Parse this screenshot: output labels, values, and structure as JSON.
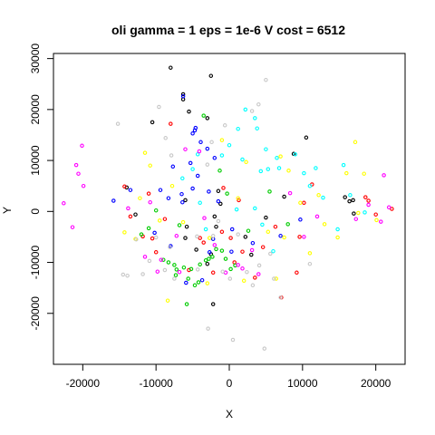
{
  "chart_data": {
    "type": "scatter",
    "title": "oli gamma = 1 eps = 1e-6 V cost = 6512",
    "xlabel": "X",
    "ylabel": "Y",
    "xlim": [
      -24000,
      24000
    ],
    "ylim": [
      -30000,
      31000
    ],
    "x_ticks": [
      -20000,
      -10000,
      0,
      10000,
      20000
    ],
    "y_ticks": [
      -20000,
      -10000,
      0,
      10000,
      20000,
      30000
    ],
    "x_tick_labels": [
      "-20000",
      "-10000",
      "0",
      "10000",
      "20000"
    ],
    "y_tick_labels": [
      "-20000",
      "-10000",
      "0",
      "10000",
      "20000",
      "30000"
    ],
    "grid": false,
    "legend": "none",
    "series": [
      {
        "color": "#000000",
        "points": [
          [
            -8000,
            28200
          ],
          [
            -6300,
            23000
          ],
          [
            -6300,
            22000
          ],
          [
            -2500,
            26600
          ],
          [
            -10500,
            17500
          ],
          [
            -5500,
            19600
          ],
          [
            -3000,
            18300
          ],
          [
            -12800,
            -600
          ],
          [
            -5800,
            -3000
          ],
          [
            -6000,
            2200
          ],
          [
            -6000,
            -5200
          ],
          [
            -1800,
            -3000
          ],
          [
            -1500,
            4000
          ],
          [
            -2500,
            -8400
          ],
          [
            -3000,
            -10300
          ],
          [
            2200,
            -5000
          ],
          [
            5000,
            -1200
          ],
          [
            7500,
            2900
          ],
          [
            8800,
            11300
          ],
          [
            10500,
            14500
          ],
          [
            15800,
            2800
          ],
          [
            16400,
            2000
          ],
          [
            16900,
            2200
          ],
          [
            17000,
            -400
          ],
          [
            -4500,
            -7500
          ],
          [
            -2000,
            -1000
          ],
          [
            -1200,
            1500
          ],
          [
            3000,
            -8500
          ],
          [
            -2200,
            -18200
          ],
          [
            -14000,
            4700
          ]
        ]
      },
      {
        "color": "#ff0000",
        "points": [
          [
            -8000,
            17200
          ],
          [
            -14300,
            4900
          ],
          [
            -13500,
            -1000
          ],
          [
            -11800,
            -4900
          ],
          [
            -11000,
            3500
          ],
          [
            -10500,
            -5300
          ],
          [
            -8800,
            -1500
          ],
          [
            -4000,
            -5200
          ],
          [
            -3500,
            -6100
          ],
          [
            -2200,
            -12000
          ],
          [
            -1000,
            -4000
          ],
          [
            -800,
            4600
          ],
          [
            200,
            -5200
          ],
          [
            700,
            -10000
          ],
          [
            1300,
            2200
          ],
          [
            1800,
            -7900
          ],
          [
            3500,
            -13000
          ],
          [
            4600,
            -7000
          ],
          [
            6300,
            -3000
          ],
          [
            7100,
            -16900
          ],
          [
            9200,
            -12000
          ],
          [
            9600,
            -5000
          ],
          [
            10200,
            1700
          ],
          [
            11300,
            5300
          ],
          [
            18600,
            2800
          ],
          [
            19000,
            2100
          ],
          [
            20000,
            -600
          ],
          [
            22200,
            500
          ],
          [
            -10000,
            -8000
          ],
          [
            -5500,
            -11500
          ]
        ]
      },
      {
        "color": "#00cc00",
        "points": [
          [
            -9000,
            -9500
          ],
          [
            -8300,
            -10000
          ],
          [
            -7500,
            -10500
          ],
          [
            -7300,
            -12500
          ],
          [
            -7200,
            -11400
          ],
          [
            -6200,
            -11000
          ],
          [
            -5600,
            -13200
          ],
          [
            -5200,
            -11300
          ],
          [
            -4700,
            -14500
          ],
          [
            -4200,
            -13900
          ],
          [
            -3200,
            -9600
          ],
          [
            -2800,
            -9300
          ],
          [
            -2300,
            -8900
          ],
          [
            -1800,
            -7400
          ],
          [
            -1000,
            -7700
          ],
          [
            -500,
            -9300
          ],
          [
            200,
            -11300
          ],
          [
            800,
            -10600
          ],
          [
            -5800,
            -18200
          ],
          [
            -4000,
            -10400
          ],
          [
            -12000,
            -4500
          ],
          [
            -11000,
            -3300
          ],
          [
            -10000,
            200
          ],
          [
            -6800,
            -2700
          ],
          [
            -3500,
            18800
          ],
          [
            -1300,
            8000
          ],
          [
            -300,
            3500
          ],
          [
            2600,
            -3800
          ],
          [
            5500,
            3900
          ],
          [
            8000,
            -2500
          ]
        ]
      },
      {
        "color": "#0000ff",
        "points": [
          [
            -6300,
            22600
          ],
          [
            -5000,
            15300
          ],
          [
            -4600,
            16400
          ],
          [
            -4700,
            15900
          ],
          [
            -3900,
            13600
          ],
          [
            -3000,
            12300
          ],
          [
            -2000,
            10500
          ],
          [
            -5300,
            9500
          ],
          [
            -7700,
            8800
          ],
          [
            -4300,
            7000
          ],
          [
            -2800,
            3900
          ],
          [
            -5000,
            4500
          ],
          [
            -8300,
            2600
          ],
          [
            -13500,
            4200
          ],
          [
            -15800,
            2100
          ],
          [
            -2200,
            -5400
          ],
          [
            -8000,
            -6800
          ],
          [
            -2700,
            -8000
          ],
          [
            300,
            -7900
          ],
          [
            3200,
            -6200
          ],
          [
            9700,
            -1600
          ],
          [
            7000,
            -4800
          ],
          [
            -6400,
            1800
          ],
          [
            -5900,
            -14000
          ],
          [
            -3700,
            -13500
          ],
          [
            -9400,
            4200
          ],
          [
            -6500,
            3400
          ],
          [
            -10200,
            -4200
          ],
          [
            -1500,
            2000
          ],
          [
            400,
            -3500
          ]
        ]
      },
      {
        "color": "#00ffff",
        "points": [
          [
            -4300,
            11200
          ],
          [
            -5000,
            8300
          ],
          [
            -1000,
            11000
          ],
          [
            0,
            13000
          ],
          [
            1200,
            16200
          ],
          [
            2200,
            20000
          ],
          [
            3500,
            18300
          ],
          [
            3800,
            16300
          ],
          [
            5000,
            12200
          ],
          [
            5300,
            8300
          ],
          [
            6500,
            10500
          ],
          [
            6800,
            8500
          ],
          [
            9000,
            11200
          ],
          [
            10200,
            7500
          ],
          [
            11800,
            8500
          ],
          [
            12800,
            2700
          ],
          [
            14800,
            -3500
          ],
          [
            15600,
            9100
          ],
          [
            16500,
            3200
          ],
          [
            18500,
            -200
          ],
          [
            3500,
            600
          ],
          [
            4500,
            -2600
          ],
          [
            6000,
            -7800
          ],
          [
            -3200,
            -3500
          ],
          [
            -4000,
            1700
          ],
          [
            1000,
            400
          ],
          [
            1800,
            10200
          ],
          [
            -6400,
            6500
          ],
          [
            4300,
            7900
          ],
          [
            11000,
            5000
          ]
        ]
      },
      {
        "color": "#ff00ff",
        "points": [
          [
            -22600,
            1600
          ],
          [
            -21400,
            -3100
          ],
          [
            -20900,
            9100
          ],
          [
            -20600,
            7400
          ],
          [
            -20100,
            12900
          ],
          [
            -19900,
            5000
          ],
          [
            -13800,
            600
          ],
          [
            -11500,
            -8900
          ],
          [
            -10800,
            1800
          ],
          [
            -9800,
            -11800
          ],
          [
            -9300,
            -9500
          ],
          [
            -7200,
            -4800
          ],
          [
            -6800,
            -11900
          ],
          [
            -6000,
            12200
          ],
          [
            -4100,
            11800
          ],
          [
            -3400,
            -1300
          ],
          [
            -2000,
            -6600
          ],
          [
            -500,
            -12000
          ],
          [
            1200,
            -10500
          ],
          [
            1800,
            -11200
          ],
          [
            3100,
            -7600
          ],
          [
            4000,
            -12300
          ],
          [
            8300,
            3600
          ],
          [
            10200,
            -5000
          ],
          [
            17300,
            -1500
          ],
          [
            19000,
            1300
          ],
          [
            20700,
            -2000
          ],
          [
            21100,
            7100
          ],
          [
            21800,
            800
          ],
          [
            12000,
            -1000
          ]
        ]
      },
      {
        "color": "#ffff00",
        "points": [
          [
            -11500,
            11500
          ],
          [
            -10800,
            9000
          ],
          [
            -12200,
            2600
          ],
          [
            -12800,
            -5400
          ],
          [
            -14300,
            -4100
          ],
          [
            -7800,
            5000
          ],
          [
            -6300,
            -2100
          ],
          [
            -2700,
            -5200
          ],
          [
            1200,
            2600
          ],
          [
            2300,
            9700
          ],
          [
            5300,
            -4000
          ],
          [
            7000,
            10800
          ],
          [
            7500,
            -5100
          ],
          [
            8100,
            8000
          ],
          [
            11000,
            -8200
          ],
          [
            12200,
            3200
          ],
          [
            14800,
            -5100
          ],
          [
            17200,
            13600
          ],
          [
            17600,
            -300
          ],
          [
            18400,
            7400
          ],
          [
            20100,
            -1700
          ],
          [
            2000,
            -13600
          ],
          [
            -3000,
            -14100
          ],
          [
            -8400,
            -17500
          ],
          [
            -1000,
            14000
          ],
          [
            13000,
            -2500
          ],
          [
            6400,
            -13200
          ],
          [
            -9500,
            -1800
          ],
          [
            16000,
            7500
          ],
          [
            9700,
            1700
          ]
        ]
      },
      {
        "color": "#c8c8c8",
        "points": [
          [
            -15200,
            17200
          ],
          [
            -14500,
            -12400
          ],
          [
            -13900,
            -12600
          ],
          [
            -12700,
            -5500
          ],
          [
            -11800,
            -12300
          ],
          [
            -10900,
            -9700
          ],
          [
            -10000,
            -5100
          ],
          [
            -9600,
            20500
          ],
          [
            -8800,
            -11500
          ],
          [
            -8100,
            -7000
          ],
          [
            -7500,
            -13200
          ],
          [
            -4300,
            -11400
          ],
          [
            -2900,
            -23000
          ],
          [
            -2200,
            -4800
          ],
          [
            -1500,
            -1900
          ],
          [
            -900,
            -11800
          ],
          [
            100,
            -13200
          ],
          [
            500,
            -25200
          ],
          [
            1200,
            -4500
          ],
          [
            2400,
            -11900
          ],
          [
            3200,
            -14500
          ],
          [
            4100,
            -10600
          ],
          [
            4800,
            -26900
          ],
          [
            5600,
            -8300
          ],
          [
            6100,
            -13200
          ],
          [
            7000,
            -16900
          ],
          [
            4000,
            21000
          ],
          [
            5000,
            25800
          ],
          [
            -600,
            16900
          ],
          [
            -3000,
            9200
          ],
          [
            -2400,
            13600
          ],
          [
            3100,
            19700
          ],
          [
            -4400,
            -4900
          ],
          [
            11000,
            -10300
          ],
          [
            -8700,
            14400
          ],
          [
            -7900,
            11000
          ]
        ]
      }
    ]
  }
}
